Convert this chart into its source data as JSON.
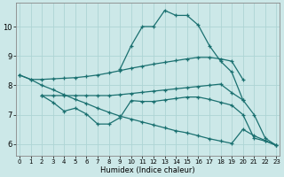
{
  "xlabel": "Humidex (Indice chaleur)",
  "bg_color": "#cce8e8",
  "grid_color": "#aed4d4",
  "line_color": "#1a7070",
  "x_ticks": [
    0,
    1,
    2,
    3,
    4,
    5,
    6,
    7,
    8,
    9,
    10,
    11,
    12,
    13,
    14,
    15,
    16,
    17,
    18,
    19,
    20,
    21,
    22,
    23
  ],
  "ylim": [
    5.6,
    10.8
  ],
  "xlim": [
    -0.3,
    23.3
  ],
  "yticks": [
    6,
    7,
    8,
    9,
    10
  ],
  "line1_x": [
    0,
    1,
    2,
    3,
    4,
    5,
    6,
    7,
    8,
    9,
    10,
    11,
    12,
    13,
    14,
    15,
    16,
    17,
    18,
    19,
    20
  ],
  "line1_y": [
    8.35,
    8.2,
    8.2,
    8.22,
    8.24,
    8.26,
    8.3,
    8.35,
    8.42,
    8.5,
    8.58,
    8.65,
    8.72,
    8.78,
    8.84,
    8.9,
    8.95,
    8.95,
    8.9,
    8.82,
    8.2
  ],
  "line2_x": [
    2,
    3,
    4,
    5,
    6,
    7,
    8,
    9,
    10,
    11,
    12,
    13,
    14,
    15,
    16,
    17,
    18,
    19,
    20
  ],
  "line2_y": [
    7.65,
    7.65,
    7.65,
    7.65,
    7.65,
    7.65,
    7.65,
    7.68,
    7.72,
    7.76,
    7.8,
    7.84,
    7.88,
    7.92,
    7.96,
    8.0,
    8.04,
    7.75,
    7.5
  ],
  "line3_x": [
    2,
    3,
    4,
    5,
    6,
    7,
    8,
    9,
    10,
    11,
    12,
    13,
    14,
    15,
    16,
    17,
    18,
    19,
    20,
    21,
    22,
    23
  ],
  "line3_y": [
    7.65,
    7.42,
    7.12,
    7.22,
    7.02,
    6.68,
    6.68,
    6.9,
    7.48,
    7.45,
    7.45,
    7.5,
    7.55,
    7.6,
    7.6,
    7.52,
    7.42,
    7.32,
    7.0,
    6.2,
    6.1,
    5.95
  ],
  "line4_x": [
    0,
    1,
    2,
    3,
    4,
    5,
    6,
    7,
    8,
    9,
    10,
    11,
    12,
    13,
    14,
    15,
    16,
    17,
    18,
    19,
    20,
    21,
    22,
    23
  ],
  "line4_y": [
    8.35,
    8.2,
    8.0,
    7.85,
    7.68,
    7.52,
    7.38,
    7.22,
    7.08,
    6.95,
    6.85,
    6.75,
    6.65,
    6.55,
    6.45,
    6.38,
    6.28,
    6.18,
    6.1,
    6.02,
    6.5,
    6.28,
    6.12,
    5.95
  ],
  "line5_x": [
    9,
    10,
    11,
    12,
    13,
    14,
    15,
    16,
    17,
    18,
    19,
    20,
    21,
    22,
    23
  ],
  "line5_y": [
    8.55,
    9.35,
    10.0,
    10.0,
    10.55,
    10.38,
    10.38,
    10.05,
    9.35,
    8.82,
    8.45,
    7.5,
    7.0,
    6.2,
    5.95
  ]
}
